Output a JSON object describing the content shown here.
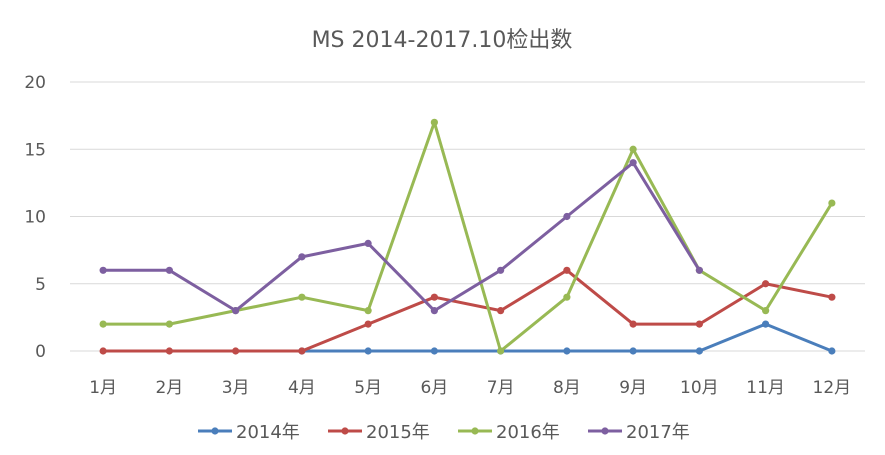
{
  "chart_data": {
    "type": "line",
    "title": "MS 2014-2017.10检出数",
    "xlabel": "",
    "ylabel": "",
    "categories": [
      "1月",
      "2月",
      "3月",
      "4月",
      "5月",
      "6月",
      "7月",
      "8月",
      "9月",
      "10月",
      "11月",
      "12月"
    ],
    "ylim": [
      0,
      20
    ],
    "yticks": [
      0,
      5,
      10,
      15,
      20
    ],
    "grid": true,
    "legend_position": "bottom",
    "series": [
      {
        "name": "2014年",
        "color": "#4a7ebb",
        "values": [
          null,
          null,
          null,
          0,
          0,
          0,
          0,
          0,
          0,
          0,
          2,
          0
        ]
      },
      {
        "name": "2015年",
        "color": "#be4b48",
        "values": [
          0,
          0,
          0,
          0,
          2,
          4,
          3,
          6,
          2,
          2,
          5,
          4
        ]
      },
      {
        "name": "2016年",
        "color": "#98b954",
        "values": [
          2,
          2,
          3,
          4,
          3,
          17,
          0,
          4,
          15,
          6,
          3,
          11
        ]
      },
      {
        "name": "2017年",
        "color": "#7d5fa0",
        "values": [
          6,
          6,
          3,
          7,
          8,
          3,
          6,
          10,
          14,
          6,
          null,
          null
        ]
      }
    ]
  }
}
